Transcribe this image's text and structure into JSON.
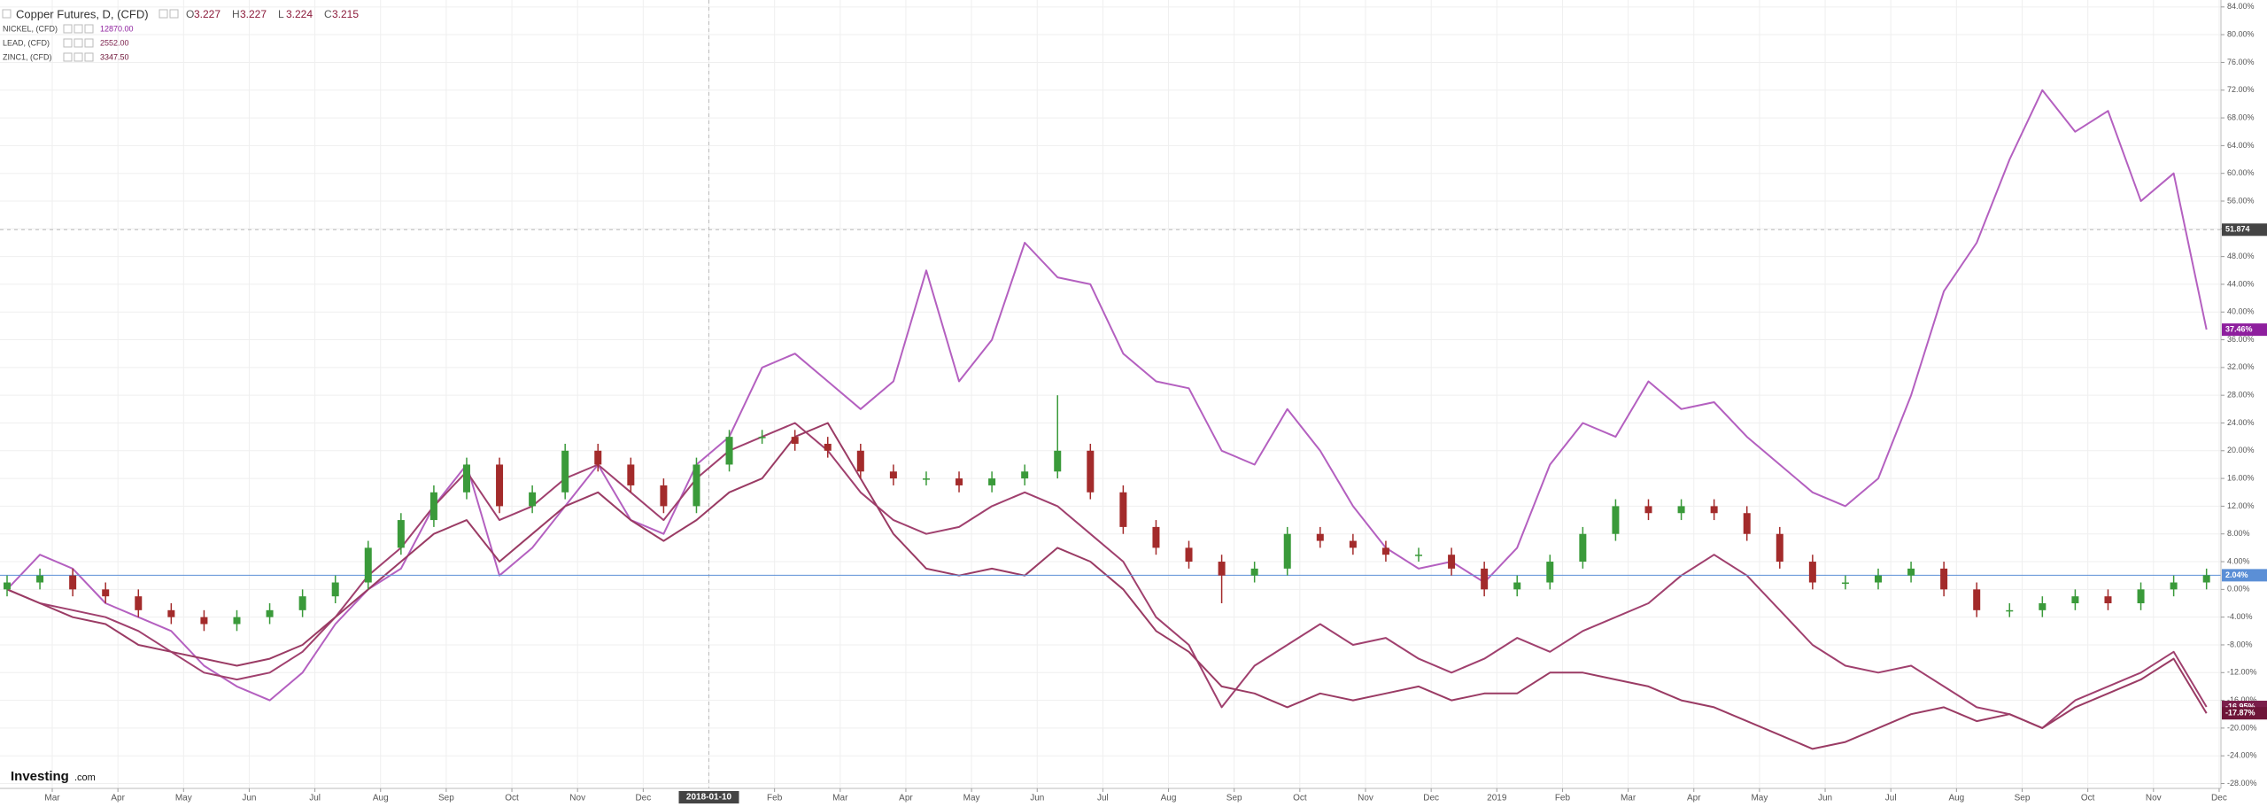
{
  "chart_data": {
    "type": "candlestick",
    "ylim": [
      -28.7,
      85
    ],
    "yticks": [
      {
        "value": 84,
        "label": "84.00%"
      },
      {
        "value": 80,
        "label": "80.00%"
      },
      {
        "value": 76,
        "label": "76.00%"
      },
      {
        "value": 72,
        "label": "72.00%"
      },
      {
        "value": 68,
        "label": "68.00%"
      },
      {
        "value": 64,
        "label": "64.00%"
      },
      {
        "value": 60,
        "label": "60.00%"
      },
      {
        "value": 56,
        "label": "56.00%"
      },
      {
        "value": 52,
        "label": "52.00%"
      },
      {
        "value": 48,
        "label": "48.00%"
      },
      {
        "value": 44,
        "label": "44.00%"
      },
      {
        "value": 40,
        "label": "40.00%"
      },
      {
        "value": 36,
        "label": "36.00%"
      },
      {
        "value": 32,
        "label": "32.00%"
      },
      {
        "value": 28,
        "label": "28.00%"
      },
      {
        "value": 24,
        "label": "24.00%"
      },
      {
        "value": 20,
        "label": "20.00%"
      },
      {
        "value": 16,
        "label": "16.00%"
      },
      {
        "value": 12,
        "label": "12.00%"
      },
      {
        "value": 8,
        "label": "8.00%"
      },
      {
        "value": 4,
        "label": "4.00%"
      },
      {
        "value": 0,
        "label": "0.00%"
      },
      {
        "value": -4,
        "label": "-4.00%"
      },
      {
        "value": -8,
        "label": "-8.00%"
      },
      {
        "value": -12,
        "label": "-12.00%"
      },
      {
        "value": -16,
        "label": "-16.00%"
      },
      {
        "value": -20,
        "label": "-20.00%"
      },
      {
        "value": -24,
        "label": "-24.00%"
      },
      {
        "value": -28,
        "label": "-28.00%"
      }
    ],
    "xticks": [
      "Mar",
      "Apr",
      "May",
      "Jun",
      "Jul",
      "Aug",
      "Sep",
      "Oct",
      "Nov",
      "Dec",
      null,
      "Feb",
      "Mar",
      "Apr",
      "May",
      "Jun",
      "Jul",
      "Aug",
      "Sep",
      "Oct",
      "Nov",
      "Dec",
      "2019",
      "Feb",
      "Mar",
      "Apr",
      "May",
      "Jun",
      "Jul",
      "Aug",
      "Sep",
      "Oct",
      "Nov",
      "Dec"
    ],
    "grid": true,
    "crosshair": {
      "x": "2018-01-10",
      "y": 51.874
    },
    "ohlc_legend": [
      {
        "label": "O",
        "value": 3.227
      },
      {
        "label": "H",
        "value": 3.227
      },
      {
        "label": "L",
        "value": 3.224
      },
      {
        "label": "C",
        "value": 3.215
      }
    ],
    "logo": {
      "name": "Investing",
      "suffix": ".com"
    },
    "series": [
      {
        "name": "Copper Futures, D, (CFD)",
        "type": "candlestick",
        "up_color": "#3a9a3a",
        "down_color": "#a32b2b",
        "color": "#5b8fd6",
        "last_label": "2.04%",
        "open": [
          0,
          1,
          2,
          0,
          -1,
          -3,
          -4,
          -5,
          -4,
          -3,
          -1,
          1,
          6,
          10,
          14,
          18,
          12,
          14,
          20,
          18,
          15,
          12,
          18,
          22,
          22,
          21,
          20,
          17,
          16,
          16,
          15,
          16,
          17,
          20,
          14,
          9,
          6,
          4,
          2,
          3,
          8,
          7,
          6,
          5,
          5,
          3,
          0,
          1,
          4,
          8,
          12,
          11,
          12,
          11,
          8,
          4,
          1,
          1,
          2,
          3,
          0,
          -3,
          -3,
          -2,
          -1,
          -2,
          0,
          1
        ],
        "high": [
          2,
          3,
          3,
          1,
          0,
          -2,
          -3,
          -3,
          -2,
          0,
          2,
          7,
          11,
          15,
          19,
          19,
          15,
          21,
          21,
          19,
          16,
          19,
          23,
          23,
          23,
          22,
          21,
          18,
          17,
          17,
          17,
          18,
          28,
          21,
          15,
          10,
          7,
          5,
          4,
          9,
          9,
          8,
          7,
          6,
          6,
          4,
          2,
          5,
          9,
          13,
          13,
          13,
          13,
          12,
          9,
          5,
          2,
          3,
          4,
          4,
          1,
          -2,
          -1,
          0,
          0,
          1,
          2,
          3
        ],
        "low": [
          -1,
          0,
          -1,
          -2,
          -4,
          -5,
          -6,
          -6,
          -5,
          -4,
          -2,
          0,
          5,
          9,
          13,
          11,
          11,
          13,
          17,
          14,
          11,
          11,
          17,
          21,
          20,
          19,
          16,
          15,
          15,
          14,
          14,
          15,
          16,
          13,
          8,
          5,
          3,
          -2,
          1,
          2,
          6,
          5,
          4,
          4,
          2,
          -1,
          -1,
          0,
          3,
          7,
          10,
          10,
          10,
          7,
          3,
          0,
          0,
          0,
          1,
          -1,
          -4,
          -4,
          -4,
          -3,
          -3,
          -3,
          -1,
          0
        ],
        "close": [
          1,
          2,
          0,
          -1,
          -3,
          -4,
          -5,
          -4,
          -3,
          -1,
          1,
          6,
          10,
          14,
          18,
          12,
          14,
          20,
          18,
          15,
          12,
          18,
          22,
          22,
          21,
          20,
          17,
          16,
          16,
          15,
          16,
          17,
          20,
          14,
          9,
          6,
          4,
          2,
          3,
          8,
          7,
          6,
          5,
          5,
          3,
          0,
          1,
          4,
          8,
          12,
          11,
          12,
          11,
          8,
          4,
          1,
          1,
          2,
          3,
          0,
          -3,
          -3,
          -2,
          -1,
          -2,
          0,
          1,
          2.04
        ]
      },
      {
        "name": "NICKEL, (CFD)",
        "type": "line",
        "color": "#b460c0",
        "badge_color": "#8e1f9e",
        "last": "12870.00",
        "last_label": "37.46%",
        "values": [
          0,
          5,
          3,
          -2,
          -4,
          -6,
          -11,
          -14,
          -16,
          -12,
          -5,
          0,
          3,
          12,
          18,
          2,
          6,
          12,
          18,
          10,
          8,
          18,
          22,
          32,
          34,
          30,
          26,
          30,
          46,
          30,
          36,
          50,
          45,
          44,
          34,
          30,
          29,
          20,
          18,
          26,
          20,
          12,
          6,
          3,
          4,
          1,
          6,
          18,
          24,
          22,
          30,
          26,
          27,
          22,
          18,
          14,
          12,
          16,
          28,
          43,
          50,
          62,
          72,
          66,
          69,
          56,
          60,
          37.46
        ]
      },
      {
        "name": "LEAD, (CFD)",
        "type": "line",
        "color": "#a0406e",
        "badge_color": "#7a1e4a",
        "last": "2552.00",
        "last_label": "-16.95%",
        "values": [
          0,
          -2,
          -3,
          -4,
          -6,
          -9,
          -12,
          -13,
          -12,
          -9,
          -4,
          2,
          6,
          12,
          17,
          10,
          12,
          16,
          18,
          14,
          10,
          16,
          20,
          22,
          24,
          20,
          14,
          10,
          8,
          9,
          12,
          14,
          12,
          8,
          4,
          -4,
          -8,
          -17,
          -11,
          -8,
          -5,
          -8,
          -7,
          -10,
          -12,
          -10,
          -7,
          -9,
          -6,
          -4,
          -2,
          2,
          5,
          2,
          -3,
          -8,
          -11,
          -12,
          -11,
          -14,
          -17,
          -18,
          -20,
          -16,
          -14,
          -12,
          -9,
          -16.95
        ]
      },
      {
        "name": "ZINC1, (CFD)",
        "type": "line",
        "color": "#9a3b64",
        "badge_color": "#6e1538",
        "last": "3347.50",
        "last_label": "-17.87%",
        "values": [
          0,
          -2,
          -4,
          -5,
          -8,
          -9,
          -10,
          -11,
          -10,
          -8,
          -4,
          0,
          4,
          8,
          10,
          4,
          8,
          12,
          14,
          10,
          7,
          10,
          14,
          16,
          22,
          24,
          16,
          8,
          3,
          2,
          3,
          2,
          6,
          4,
          0,
          -6,
          -9,
          -14,
          -15,
          -17,
          -15,
          -16,
          -15,
          -14,
          -16,
          -15,
          -15,
          -12,
          -12,
          -13,
          -14,
          -16,
          -17,
          -19,
          -21,
          -23,
          -22,
          -20,
          -18,
          -17,
          -19,
          -18,
          -20,
          -17,
          -15,
          -13,
          -10,
          -17.87
        ]
      }
    ]
  }
}
